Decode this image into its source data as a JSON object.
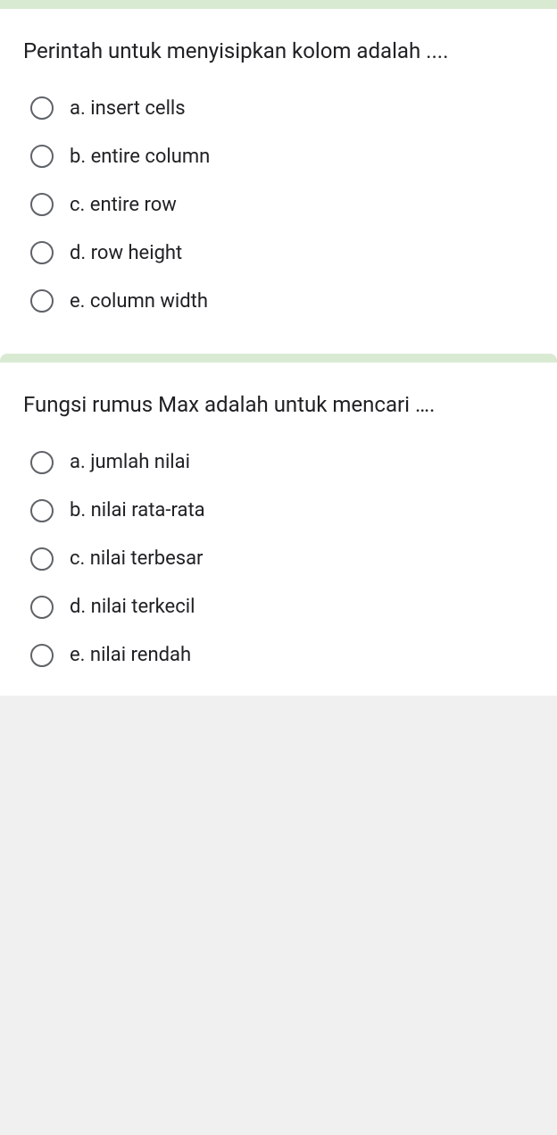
{
  "colors": {
    "card_background": "#ffffff",
    "header_bar": "#d9ead3",
    "text": "#202124",
    "radio_border": "#5f6368",
    "page_background": "#f0f0f0"
  },
  "questions": [
    {
      "text": "Perintah untuk menyisipkan kolom adalah ....",
      "options": [
        {
          "label": "a. insert cells"
        },
        {
          "label": "b. entire column"
        },
        {
          "label": "c. entire row"
        },
        {
          "label": "d. row height"
        },
        {
          "label": "e. column width"
        }
      ]
    },
    {
      "text": "Fungsi rumus Max adalah untuk mencari ….",
      "options": [
        {
          "label": "a. jumlah nilai"
        },
        {
          "label": "b. nilai rata-rata"
        },
        {
          "label": "c. nilai terbesar"
        },
        {
          "label": "d. nilai terkecil"
        },
        {
          "label": "e. nilai rendah"
        }
      ]
    }
  ]
}
